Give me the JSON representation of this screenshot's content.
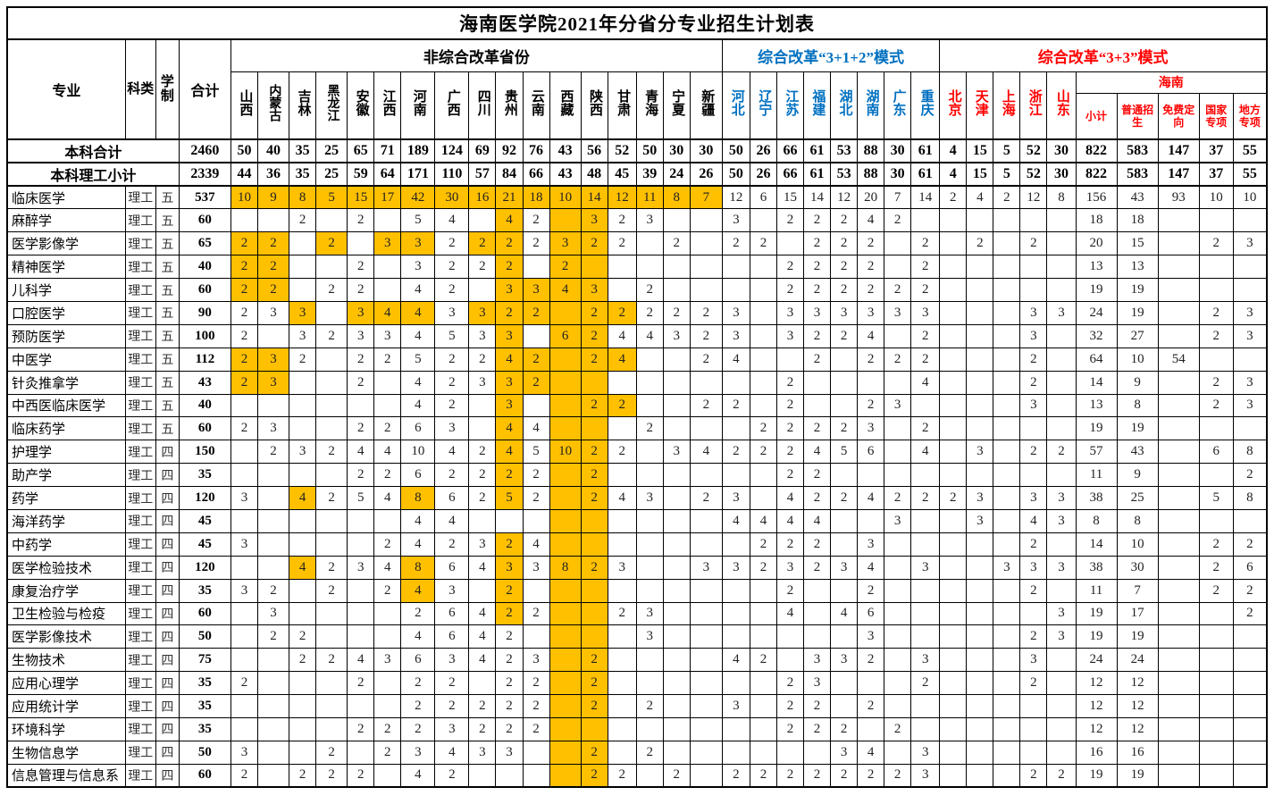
{
  "colors": {
    "orange": "#FFC000",
    "blue": "#0070C0",
    "red": "#FF0000"
  },
  "title": "海南医学院2021年分省分专业招生计划表",
  "header": {
    "major": "专业",
    "subject": "科类",
    "duration": "学制",
    "total": "合计",
    "groups": [
      {
        "label": "非综合改革省份",
        "color": "black",
        "columns": [
          "山西",
          "内蒙古",
          "吉林",
          "黑龙江",
          "安徽",
          "江西",
          "河南",
          "广西",
          "四川",
          "贵州",
          "云南",
          "西藏",
          "陕西",
          "甘肃",
          "青海",
          "宁夏",
          "新疆"
        ]
      },
      {
        "label": "综合改革“3+1+2”模式",
        "color": "blue",
        "columns": [
          "河北",
          "辽宁",
          "江苏",
          "福建",
          "湖北",
          "湖南",
          "广东",
          "重庆"
        ]
      },
      {
        "label": "综合改革“3+3”模式",
        "color": "red",
        "columns": [
          "北京",
          "天津",
          "上海",
          "浙江",
          "山东"
        ],
        "hainan": {
          "label": "海南",
          "columns": [
            "小计",
            "普通招生",
            "免费定向",
            "国家专项",
            "地方专项"
          ]
        }
      }
    ]
  },
  "summary_rows": [
    {
      "label": "本科合计",
      "total": "2460",
      "values": [
        "50",
        "40",
        "35",
        "25",
        "65",
        "71",
        "189",
        "124",
        "69",
        "92",
        "76",
        "43",
        "56",
        "52",
        "50",
        "30",
        "30",
        "50",
        "26",
        "66",
        "61",
        "53",
        "88",
        "30",
        "61",
        "4",
        "15",
        "5",
        "52",
        "30",
        "822",
        "583",
        "147",
        "37",
        "55"
      ]
    },
    {
      "label": "本科理工小计",
      "total": "2339",
      "values": [
        "44",
        "36",
        "35",
        "25",
        "59",
        "64",
        "171",
        "110",
        "57",
        "84",
        "66",
        "43",
        "48",
        "45",
        "39",
        "24",
        "26",
        "50",
        "26",
        "66",
        "61",
        "53",
        "88",
        "30",
        "61",
        "4",
        "15",
        "5",
        "52",
        "30",
        "822",
        "583",
        "147",
        "37",
        "55"
      ]
    }
  ],
  "rows": [
    {
      "name": "临床医学",
      "subject": "理工",
      "duration": "五",
      "total": "537",
      "values": [
        "10",
        "9",
        "8",
        "5",
        "15",
        "17",
        "42",
        "30",
        "16",
        "21",
        "18",
        "10",
        "14",
        "12",
        "11",
        "8",
        "7",
        "12",
        "6",
        "15",
        "14",
        "12",
        "20",
        "7",
        "14",
        "2",
        "4",
        "2",
        "12",
        "8",
        "156",
        "43",
        "93",
        "10",
        "10"
      ],
      "orange": [
        0,
        1,
        2,
        3,
        4,
        5,
        6,
        7,
        8,
        9,
        10,
        11,
        12,
        13,
        14,
        15,
        16
      ]
    },
    {
      "name": "麻醉学",
      "subject": "理工",
      "duration": "五",
      "total": "60",
      "values": [
        "",
        "",
        "2",
        "",
        "2",
        "",
        "5",
        "4",
        "",
        "4",
        "2",
        "",
        "3",
        "2",
        "3",
        "",
        "",
        "3",
        "",
        "2",
        "2",
        "2",
        "4",
        "2",
        "",
        "",
        "",
        "",
        "",
        "",
        "18",
        "18",
        "",
        "",
        ""
      ],
      "orange": [
        9,
        11,
        12
      ]
    },
    {
      "name": "医学影像学",
      "subject": "理工",
      "duration": "五",
      "total": "65",
      "values": [
        "2",
        "2",
        "",
        "2",
        "",
        "3",
        "3",
        "2",
        "2",
        "2",
        "2",
        "3",
        "2",
        "2",
        "",
        "2",
        "",
        "2",
        "2",
        "",
        "2",
        "2",
        "2",
        "",
        "2",
        "",
        "2",
        "",
        "2",
        "",
        "20",
        "15",
        "",
        "2",
        "3"
      ],
      "orange": [
        0,
        1,
        3,
        5,
        6,
        8,
        9,
        11,
        12
      ]
    },
    {
      "name": "精神医学",
      "subject": "理工",
      "duration": "五",
      "total": "40",
      "values": [
        "2",
        "2",
        "",
        "",
        "2",
        "",
        "3",
        "2",
        "2",
        "2",
        "",
        "2",
        "",
        "",
        "",
        "",
        "",
        "",
        "",
        "2",
        "2",
        "2",
        "2",
        "",
        "2",
        "",
        "",
        "",
        "",
        "",
        "13",
        "13",
        "",
        "",
        ""
      ],
      "orange": [
        0,
        1,
        9,
        11,
        12
      ]
    },
    {
      "name": "儿科学",
      "subject": "理工",
      "duration": "五",
      "total": "60",
      "values": [
        "2",
        "2",
        "",
        "2",
        "2",
        "",
        "4",
        "2",
        "",
        "3",
        "3",
        "4",
        "3",
        "",
        "2",
        "",
        "",
        "",
        "",
        "2",
        "2",
        "2",
        "2",
        "2",
        "2",
        "",
        "",
        "",
        "",
        "",
        "19",
        "19",
        "",
        "",
        ""
      ],
      "orange": [
        0,
        1,
        9,
        10,
        11,
        12
      ]
    },
    {
      "name": "口腔医学",
      "subject": "理工",
      "duration": "五",
      "total": "90",
      "values": [
        "2",
        "3",
        "3",
        "",
        "3",
        "4",
        "4",
        "3",
        "3",
        "2",
        "2",
        "",
        "2",
        "2",
        "2",
        "2",
        "2",
        "3",
        "",
        "3",
        "3",
        "3",
        "3",
        "3",
        "3",
        "",
        "",
        "",
        "3",
        "3",
        "24",
        "19",
        "",
        "2",
        "3"
      ],
      "orange": [
        2,
        4,
        5,
        6,
        8,
        9,
        10,
        11,
        12,
        13
      ]
    },
    {
      "name": "预防医学",
      "subject": "理工",
      "duration": "五",
      "total": "100",
      "values": [
        "2",
        "",
        "3",
        "2",
        "3",
        "3",
        "4",
        "5",
        "3",
        "3",
        "",
        "6",
        "2",
        "4",
        "4",
        "3",
        "2",
        "3",
        "",
        "3",
        "2",
        "2",
        "4",
        "",
        "2",
        "",
        "",
        "",
        "3",
        "",
        "32",
        "27",
        "",
        "2",
        "3"
      ],
      "orange": [
        9,
        11,
        12
      ]
    },
    {
      "name": "中医学",
      "subject": "理工",
      "duration": "五",
      "total": "112",
      "values": [
        "2",
        "3",
        "2",
        "",
        "2",
        "2",
        "5",
        "2",
        "2",
        "4",
        "2",
        "",
        "2",
        "4",
        "",
        "",
        "2",
        "4",
        "",
        "",
        "2",
        "",
        "2",
        "2",
        "2",
        "",
        "",
        "",
        "2",
        "",
        "64",
        "10",
        "54",
        "",
        ""
      ],
      "orange": [
        0,
        1,
        9,
        10,
        11,
        12,
        13
      ]
    },
    {
      "name": "针灸推拿学",
      "subject": "理工",
      "duration": "五",
      "total": "43",
      "values": [
        "2",
        "3",
        "",
        "",
        "2",
        "",
        "4",
        "2",
        "3",
        "3",
        "2",
        "",
        "",
        "",
        "",
        "",
        "",
        "",
        "",
        "2",
        "",
        "",
        "",
        "",
        "4",
        "",
        "",
        "",
        "2",
        "",
        "14",
        "9",
        "",
        "2",
        "3"
      ],
      "orange": [
        0,
        1,
        9,
        10,
        11,
        12
      ]
    },
    {
      "name": "中西医临床医学",
      "subject": "理工",
      "duration": "五",
      "total": "40",
      "values": [
        "",
        "",
        "",
        "",
        "",
        "",
        "4",
        "2",
        "",
        "3",
        "",
        "",
        "2",
        "2",
        "",
        "",
        "2",
        "2",
        "",
        "2",
        "",
        "",
        "2",
        "3",
        "",
        "",
        "",
        "",
        "3",
        "",
        "13",
        "8",
        "",
        "2",
        "3"
      ],
      "orange": [
        9,
        11,
        12,
        13
      ]
    },
    {
      "name": "临床药学",
      "subject": "理工",
      "duration": "五",
      "total": "60",
      "values": [
        "2",
        "3",
        "",
        "",
        "2",
        "2",
        "6",
        "3",
        "",
        "4",
        "4",
        "",
        "",
        "",
        "2",
        "",
        "",
        "",
        "2",
        "2",
        "2",
        "2",
        "3",
        "",
        "2",
        "",
        "",
        "",
        "",
        "",
        "19",
        "19",
        "",
        "",
        ""
      ],
      "orange": [
        9,
        11,
        12
      ]
    },
    {
      "name": "护理学",
      "subject": "理工",
      "duration": "四",
      "total": "150",
      "values": [
        "",
        "2",
        "3",
        "2",
        "4",
        "4",
        "10",
        "4",
        "2",
        "4",
        "5",
        "10",
        "2",
        "2",
        "",
        "3",
        "4",
        "2",
        "2",
        "2",
        "4",
        "5",
        "6",
        "",
        "4",
        "",
        "3",
        "",
        "2",
        "2",
        "57",
        "43",
        "",
        "6",
        "8"
      ],
      "orange": [
        9,
        11,
        12
      ]
    },
    {
      "name": "助产学",
      "subject": "理工",
      "duration": "四",
      "total": "35",
      "values": [
        "",
        "",
        "",
        "",
        "2",
        "2",
        "6",
        "2",
        "2",
        "2",
        "2",
        "",
        "2",
        "",
        "",
        "",
        "",
        "",
        "",
        "2",
        "2",
        "",
        "",
        "",
        "",
        "",
        "",
        "",
        "",
        "",
        "11",
        "9",
        "",
        "",
        "2"
      ],
      "orange": [
        9,
        11,
        12
      ]
    },
    {
      "name": "药学",
      "subject": "理工",
      "duration": "四",
      "total": "120",
      "values": [
        "3",
        "",
        "4",
        "2",
        "5",
        "4",
        "8",
        "6",
        "2",
        "5",
        "2",
        "",
        "2",
        "4",
        "3",
        "",
        "2",
        "3",
        "",
        "4",
        "2",
        "2",
        "4",
        "2",
        "2",
        "2",
        "3",
        "",
        "3",
        "3",
        "38",
        "25",
        "",
        "5",
        "8"
      ],
      "orange": [
        2,
        6,
        9,
        11,
        12
      ]
    },
    {
      "name": "海洋药学",
      "subject": "理工",
      "duration": "四",
      "total": "45",
      "values": [
        "",
        "",
        "",
        "",
        "",
        "",
        "4",
        "4",
        "",
        "",
        "",
        "",
        "",
        "",
        "",
        "",
        "",
        "4",
        "4",
        "4",
        "4",
        "",
        "",
        "3",
        "",
        "",
        "3",
        "",
        "4",
        "3",
        "8",
        "8",
        "",
        "",
        ""
      ],
      "orange": [
        11,
        12
      ]
    },
    {
      "name": "中药学",
      "subject": "理工",
      "duration": "四",
      "total": "45",
      "values": [
        "3",
        "",
        "",
        "",
        "",
        "2",
        "4",
        "2",
        "3",
        "2",
        "4",
        "",
        "",
        "",
        "",
        "",
        "",
        "",
        "2",
        "2",
        "2",
        "",
        "3",
        "",
        "",
        "",
        "",
        "",
        "2",
        "",
        "14",
        "10",
        "",
        "2",
        "2"
      ],
      "orange": [
        9,
        11,
        12
      ]
    },
    {
      "name": "医学检验技术",
      "subject": "理工",
      "duration": "四",
      "total": "120",
      "values": [
        "",
        "",
        "4",
        "2",
        "3",
        "4",
        "8",
        "6",
        "4",
        "3",
        "3",
        "8",
        "2",
        "3",
        "",
        "",
        "3",
        "3",
        "2",
        "3",
        "2",
        "3",
        "4",
        "",
        "3",
        "",
        "",
        "3",
        "3",
        "3",
        "38",
        "30",
        "",
        "2",
        "6"
      ],
      "orange": [
        2,
        6,
        9,
        11,
        12
      ]
    },
    {
      "name": "康复治疗学",
      "subject": "理工",
      "duration": "四",
      "total": "35",
      "values": [
        "3",
        "2",
        "",
        "2",
        "",
        "2",
        "4",
        "3",
        "",
        "2",
        "",
        "",
        "",
        "",
        "",
        "",
        "",
        "",
        "",
        "2",
        "",
        "",
        "2",
        "",
        "",
        "",
        "",
        "",
        "2",
        "",
        "11",
        "7",
        "",
        "2",
        "2"
      ],
      "orange": [
        6,
        9,
        11,
        12
      ]
    },
    {
      "name": "卫生检验与检疫",
      "subject": "理工",
      "duration": "四",
      "total": "60",
      "values": [
        "",
        "3",
        "",
        "",
        "",
        "",
        "2",
        "6",
        "4",
        "2",
        "2",
        "",
        "",
        "2",
        "3",
        "",
        "",
        "",
        "",
        "4",
        "",
        "4",
        "6",
        "",
        "",
        "",
        "",
        "",
        "",
        "3",
        "19",
        "17",
        "",
        "",
        "2"
      ],
      "orange": [
        9,
        11,
        12
      ]
    },
    {
      "name": "医学影像技术",
      "subject": "理工",
      "duration": "四",
      "total": "50",
      "values": [
        "",
        "2",
        "2",
        "",
        "",
        "",
        "4",
        "6",
        "4",
        "2",
        "",
        "",
        "",
        "",
        "3",
        "",
        "",
        "",
        "",
        "",
        "",
        "",
        "3",
        "",
        "",
        "",
        "",
        "",
        "2",
        "3",
        "19",
        "19",
        "",
        "",
        ""
      ],
      "orange": [
        11,
        12
      ]
    },
    {
      "name": "生物技术",
      "subject": "理工",
      "duration": "四",
      "total": "75",
      "values": [
        "",
        "",
        "2",
        "2",
        "4",
        "3",
        "6",
        "3",
        "4",
        "2",
        "3",
        "",
        "2",
        "",
        "",
        "",
        "",
        "4",
        "2",
        "",
        "3",
        "3",
        "2",
        "",
        "3",
        "",
        "",
        "",
        "3",
        "",
        "24",
        "24",
        "",
        "",
        ""
      ],
      "orange": [
        11,
        12
      ]
    },
    {
      "name": "应用心理学",
      "subject": "理工",
      "duration": "四",
      "total": "35",
      "values": [
        "2",
        "",
        "",
        "",
        "2",
        "",
        "2",
        "2",
        "",
        "2",
        "2",
        "",
        "2",
        "",
        "",
        "",
        "",
        "",
        "",
        "2",
        "3",
        "",
        "",
        "",
        "2",
        "",
        "",
        "",
        "2",
        "",
        "12",
        "12",
        "",
        "",
        ""
      ],
      "orange": [
        11,
        12
      ]
    },
    {
      "name": "应用统计学",
      "subject": "理工",
      "duration": "四",
      "total": "35",
      "values": [
        "",
        "",
        "",
        "",
        "",
        "",
        "2",
        "2",
        "2",
        "2",
        "2",
        "",
        "2",
        "",
        "2",
        "",
        "",
        "3",
        "",
        "2",
        "2",
        "",
        "2",
        "",
        "",
        "",
        "",
        "",
        "",
        "",
        "12",
        "12",
        "",
        "",
        ""
      ],
      "orange": [
        11,
        12
      ]
    },
    {
      "name": "环境科学",
      "subject": "理工",
      "duration": "四",
      "total": "35",
      "values": [
        "",
        "",
        "",
        "",
        "2",
        "2",
        "2",
        "3",
        "2",
        "2",
        "2",
        "",
        "",
        "",
        "",
        "",
        "",
        "",
        "",
        "2",
        "2",
        "2",
        "",
        "2",
        "",
        "",
        "",
        "",
        "",
        "",
        "12",
        "12",
        "",
        "",
        ""
      ],
      "orange": [
        11,
        12
      ]
    },
    {
      "name": "生物信息学",
      "subject": "理工",
      "duration": "四",
      "total": "50",
      "values": [
        "3",
        "",
        "",
        "2",
        "",
        "2",
        "3",
        "4",
        "3",
        "3",
        "",
        "",
        "2",
        "",
        "2",
        "",
        "",
        "",
        "",
        "",
        "",
        "3",
        "4",
        "",
        "3",
        "",
        "",
        "",
        "",
        "",
        "16",
        "16",
        "",
        "",
        ""
      ],
      "orange": [
        11,
        12
      ]
    },
    {
      "name": "信息管理与信息系",
      "subject": "理工",
      "duration": "四",
      "total": "60",
      "values": [
        "2",
        "",
        "2",
        "2",
        "2",
        "",
        "4",
        "2",
        "",
        "",
        "",
        "",
        "2",
        "2",
        "",
        "2",
        "",
        "2",
        "2",
        "2",
        "2",
        "2",
        "2",
        "2",
        "3",
        "",
        "",
        "",
        "2",
        "2",
        "19",
        "19",
        "",
        "",
        ""
      ],
      "orange": [
        11,
        12
      ]
    }
  ]
}
